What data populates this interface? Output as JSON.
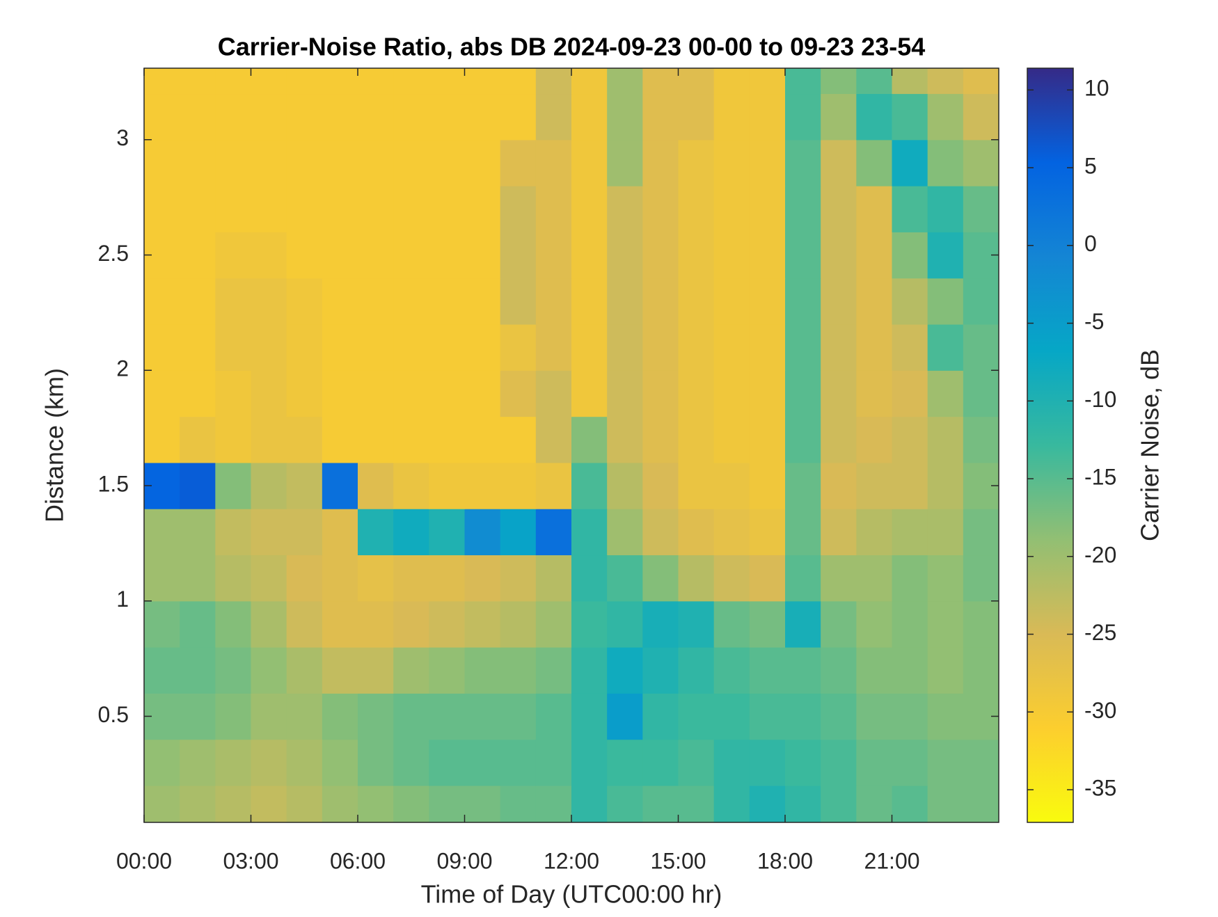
{
  "chart_data": {
    "type": "heatmap",
    "title": "Carrier-Noise Ratio, abs DB 2024-09-23 00-00 to 09-23 23-54",
    "xlabel": "Time of Day (UTC00:00 hr)",
    "ylabel": "Distance (km)",
    "colorbar_label": "Carrier Noise, dB",
    "x": [
      0.5,
      1.5,
      2.5,
      3.5,
      4.5,
      5.5,
      6.5,
      7.5,
      8.5,
      9.5,
      10.5,
      11.5,
      12.5,
      13.5,
      14.5,
      15.5,
      16.5,
      17.5,
      18.5,
      19.5,
      20.5,
      21.5,
      22.5,
      23.5
    ],
    "y": [
      0.1,
      0.3,
      0.5,
      0.7,
      0.9,
      1.1,
      1.3,
      1.5,
      1.7,
      1.9,
      2.1,
      2.3,
      2.5,
      2.7,
      2.9,
      3.1,
      3.3
    ],
    "z": [
      [
        -20,
        -21,
        -22,
        -23,
        -22,
        -20,
        -19,
        -18,
        -17,
        -17,
        -16,
        -16,
        -12,
        -14,
        -15,
        -15,
        -12,
        -10,
        -12,
        -14,
        -16,
        -15,
        -17,
        -17
      ],
      [
        -19,
        -20,
        -21,
        -22,
        -21,
        -19,
        -17,
        -16,
        -15,
        -15,
        -15,
        -15,
        -12,
        -13,
        -13,
        -14,
        -12,
        -12,
        -13,
        -14,
        -16,
        -16,
        -17,
        -17
      ],
      [
        -17,
        -17,
        -18,
        -20,
        -20,
        -18,
        -17,
        -16,
        -16,
        -16,
        -16,
        -15,
        -12,
        -5,
        -12,
        -13,
        -13,
        -14,
        -14,
        -15,
        -17,
        -17,
        -18,
        -18
      ],
      [
        -16,
        -16,
        -17,
        -19,
        -21,
        -23,
        -23,
        -20,
        -19,
        -18,
        -18,
        -17,
        -12,
        -8,
        -10,
        -12,
        -14,
        -15,
        -15,
        -16,
        -18,
        -18,
        -19,
        -18
      ],
      [
        -17,
        -16,
        -18,
        -21,
        -24,
        -26,
        -26,
        -25,
        -24,
        -23,
        -22,
        -20,
        -13,
        -12,
        -9,
        -10,
        -16,
        -17,
        -9,
        -17,
        -19,
        -18,
        -19,
        -18
      ],
      [
        -20,
        -20,
        -22,
        -23,
        -25,
        -26,
        -27,
        -26,
        -26,
        -25,
        -24,
        -22,
        -12,
        -14,
        -18,
        -22,
        -24,
        -25,
        -15,
        -20,
        -20,
        -18,
        -19,
        -17
      ],
      [
        -20,
        -20,
        -23,
        -24,
        -24,
        -26,
        -10,
        -8,
        -10,
        -2,
        -6,
        3,
        -12,
        -20,
        -24,
        -26,
        -27,
        -28,
        -16,
        -24,
        -22,
        -21,
        -21,
        -17
      ],
      [
        5,
        6,
        -18,
        -22,
        -23,
        3,
        -26,
        -28,
        -29,
        -29,
        -29,
        -28,
        -14,
        -22,
        -25,
        -28,
        -28,
        -29,
        -16,
        -25,
        -24,
        -24,
        -22,
        -18
      ],
      [
        -30,
        -28,
        -29,
        -28,
        -28,
        -30,
        -30,
        -30,
        -30,
        -30,
        -30,
        -24,
        -18,
        -24,
        -26,
        -28,
        -29,
        -29,
        -15,
        -24,
        -25,
        -24,
        -22,
        -17
      ],
      [
        -30,
        -30,
        -29,
        -28,
        -29,
        -30,
        -30,
        -30,
        -30,
        -30,
        -26,
        -24,
        -29,
        -24,
        -26,
        -28,
        -29,
        -29,
        -15,
        -24,
        -26,
        -25,
        -20,
        -16
      ],
      [
        -30,
        -30,
        -28,
        -28,
        -29,
        -30,
        -30,
        -30,
        -30,
        -30,
        -28,
        -26,
        -29,
        -24,
        -26,
        -28,
        -29,
        -29,
        -15,
        -24,
        -26,
        -24,
        -14,
        -16
      ],
      [
        -30,
        -30,
        -28,
        -28,
        -29,
        -30,
        -30,
        -30,
        -30,
        -30,
        -24,
        -26,
        -29,
        -24,
        -26,
        -28,
        -29,
        -29,
        -15,
        -24,
        -26,
        -22,
        -18,
        -15
      ],
      [
        -30,
        -30,
        -29,
        -29,
        -30,
        -30,
        -30,
        -30,
        -30,
        -30,
        -24,
        -26,
        -29,
        -24,
        -26,
        -28,
        -29,
        -29,
        -15,
        -24,
        -26,
        -18,
        -10,
        -15
      ],
      [
        -30,
        -30,
        -30,
        -30,
        -30,
        -30,
        -30,
        -30,
        -30,
        -30,
        -24,
        -26,
        -29,
        -24,
        -26,
        -28,
        -29,
        -29,
        -15,
        -24,
        -26,
        -14,
        -12,
        -16
      ],
      [
        -30,
        -30,
        -30,
        -30,
        -30,
        -30,
        -30,
        -30,
        -30,
        -30,
        -26,
        -26,
        -29,
        -20,
        -26,
        -28,
        -29,
        -29,
        -15,
        -24,
        -18,
        -8,
        -18,
        -20
      ],
      [
        -30,
        -30,
        -30,
        -30,
        -30,
        -30,
        -30,
        -30,
        -30,
        -30,
        -30,
        -24,
        -29,
        -20,
        -26,
        -26,
        -29,
        -29,
        -14,
        -20,
        -12,
        -14,
        -20,
        -24
      ],
      [
        -30,
        -30,
        -30,
        -30,
        -30,
        -30,
        -30,
        -30,
        -30,
        -30,
        -30,
        -24,
        -29,
        -20,
        -26,
        -26,
        -29,
        -29,
        -14,
        -18,
        -15,
        -22,
        -24,
        -26
      ]
    ],
    "xlim": [
      0,
      24
    ],
    "ylim": [
      0.04,
      3.31
    ],
    "clim": [
      -37.1,
      11.4
    ],
    "xticks": [
      {
        "value": 0,
        "label": "00:00"
      },
      {
        "value": 3,
        "label": "03:00"
      },
      {
        "value": 6,
        "label": "06:00"
      },
      {
        "value": 9,
        "label": "09:00"
      },
      {
        "value": 12,
        "label": "12:00"
      },
      {
        "value": 15,
        "label": "15:00"
      },
      {
        "value": 18,
        "label": "18:00"
      },
      {
        "value": 21,
        "label": "21:00"
      }
    ],
    "yticks": [
      0.5,
      1,
      1.5,
      2,
      2.5,
      3
    ],
    "cticks": [
      10,
      5,
      0,
      -5,
      -10,
      -15,
      -20,
      -25,
      -30,
      -35
    ],
    "colormap": [
      "#f9fb0e",
      "#fcce2e",
      "#d9ba56",
      "#92bf73",
      "#38b99e",
      "#06a7c6",
      "#1485d4",
      "#0363e1",
      "#352a87"
    ]
  }
}
